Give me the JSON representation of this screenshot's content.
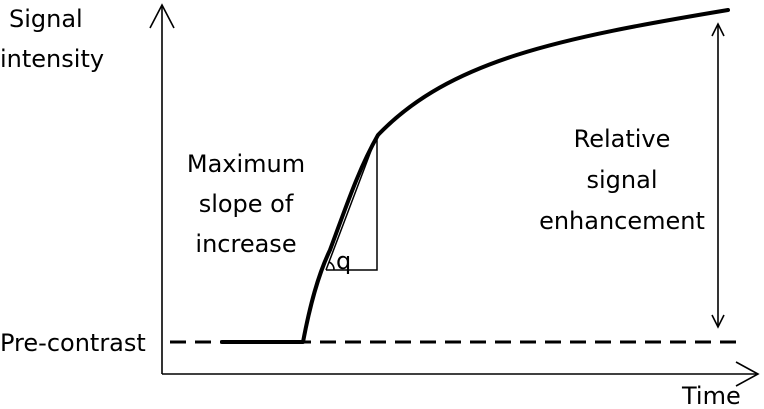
{
  "labels": {
    "y_axis_line1": "Signal",
    "y_axis_line2": "intensity",
    "x_axis": "Time",
    "pre_contrast": "Pre-contrast",
    "slope_line1": "Maximum",
    "slope_line2": "slope of",
    "slope_line3": "increase",
    "angle_symbol": "q",
    "enhancement_line1": "Relative",
    "enhancement_line2": "signal",
    "enhancement_line3": "enhancement"
  },
  "colors": {
    "ink": "#000000",
    "background": "#ffffff"
  }
}
